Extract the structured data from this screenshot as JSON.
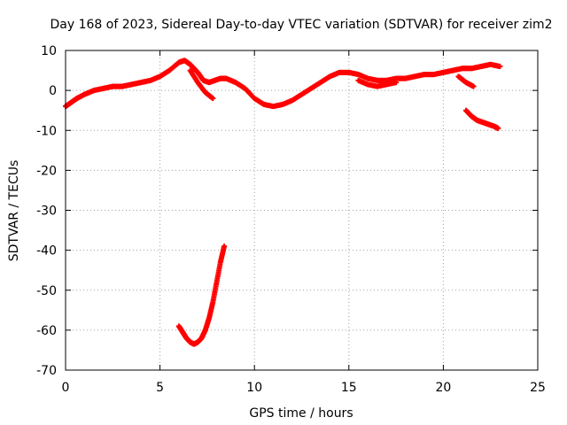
{
  "chart_data": {
    "type": "scatter",
    "title": "Day 168 of 2023, Sidereal Day-to-day VTEC variation (SDTVAR) for receiver zim2",
    "xlabel": "GPS time / hours",
    "ylabel": "SDTVAR / TECUs",
    "xlim": [
      0,
      25
    ],
    "ylim": [
      -70,
      10
    ],
    "xticks": [
      0,
      5,
      10,
      15,
      20,
      25
    ],
    "xtick_labels": [
      "0",
      "5",
      "10",
      "15",
      "20",
      "25"
    ],
    "yticks": [
      -70,
      -60,
      -50,
      -40,
      -30,
      -20,
      -10,
      0,
      10
    ],
    "ytick_labels": [
      "-70",
      "-60",
      "-50",
      "-40",
      "-30",
      "-20",
      "-10",
      "0",
      "10"
    ],
    "grid": true,
    "marker_color": "#ff0000",
    "series": [
      {
        "name": "main trace",
        "x": [
          0.0,
          0.3,
          0.6,
          1.0,
          1.5,
          2.0,
          2.5,
          3.0,
          3.5,
          4.0,
          4.5,
          5.0,
          5.5,
          6.0,
          6.3,
          6.6,
          7.0,
          7.3,
          7.6,
          7.9,
          8.2,
          8.5,
          9.0,
          9.5,
          10.0,
          10.5,
          11.0,
          11.5,
          12.0,
          12.5,
          13.0,
          13.5,
          14.0,
          14.5,
          15.0,
          15.5,
          16.0,
          16.5,
          17.0,
          17.5,
          18.0,
          18.5,
          19.0,
          19.5,
          20.0,
          20.5,
          21.0,
          21.5,
          22.0,
          22.5,
          23.0
        ],
        "y": [
          -4,
          -3,
          -2,
          -1,
          0,
          0.5,
          1,
          1,
          1.5,
          2,
          2.5,
          3.5,
          5,
          7,
          7.5,
          6.5,
          4.5,
          2.5,
          2,
          2.5,
          3,
          3,
          2,
          0.5,
          -2,
          -3.5,
          -4,
          -3.5,
          -2.5,
          -1,
          0.5,
          2,
          3.5,
          4.5,
          4.5,
          4,
          3,
          2.5,
          2.5,
          3,
          3,
          3.5,
          4,
          4,
          4.5,
          5,
          5.5,
          5.5,
          6,
          6.5,
          6
        ]
      },
      {
        "name": "dip branch",
        "x": [
          6.6,
          7.0,
          7.4,
          7.8
        ],
        "y": [
          5,
          2,
          -0.5,
          -2
        ]
      },
      {
        "name": "lower loop",
        "x": [
          15.5,
          16.0,
          16.5,
          17.0,
          17.5
        ],
        "y": [
          2.5,
          1.5,
          1,
          1.5,
          2
        ]
      },
      {
        "name": "late branch",
        "x": [
          20.8,
          21.2,
          21.6
        ],
        "y": [
          3.5,
          2,
          1
        ]
      },
      {
        "name": "segment near -10",
        "x": [
          21.2,
          21.5,
          21.8,
          22.1,
          22.4,
          22.7,
          22.9
        ],
        "y": [
          -5,
          -6.5,
          -7.5,
          -8,
          -8.5,
          -9,
          -9.5
        ]
      },
      {
        "name": "deep dip",
        "x": [
          6.0,
          6.2,
          6.4,
          6.6,
          6.8,
          7.0,
          7.2,
          7.4,
          7.6,
          7.8,
          8.0,
          8.2,
          8.4
        ],
        "y": [
          -59,
          -60.5,
          -62,
          -63,
          -63.5,
          -63,
          -62,
          -60,
          -57,
          -53,
          -48,
          -43,
          -39
        ]
      }
    ]
  }
}
